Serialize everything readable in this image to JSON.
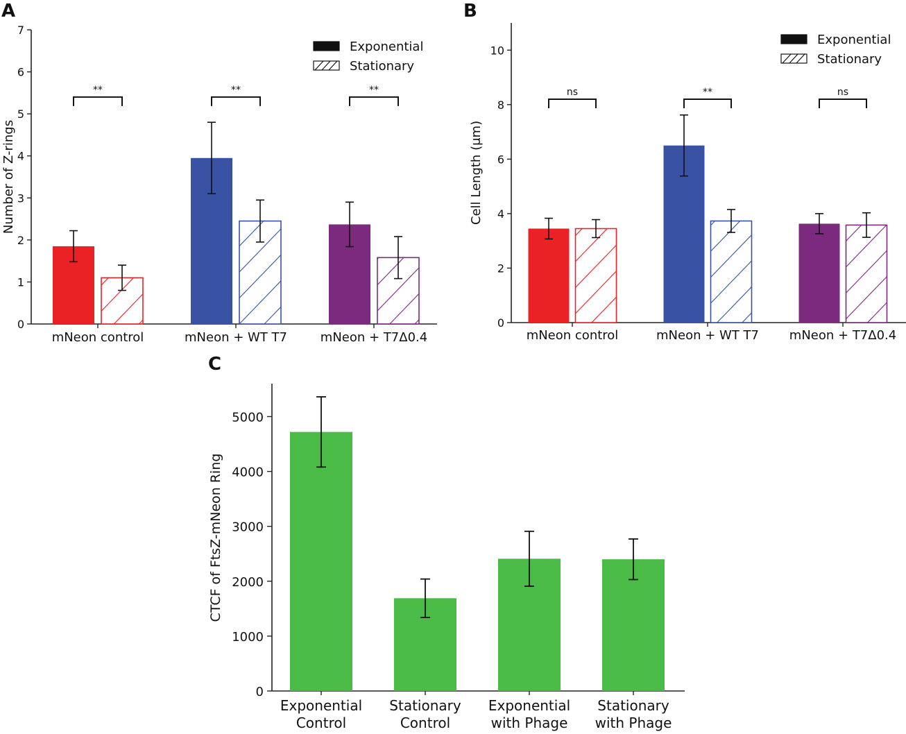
{
  "panels": {
    "a": "A",
    "b": "B",
    "c": "C"
  },
  "colors": {
    "mneon_control": "#ea2226",
    "wt_t7": "#3a52a4",
    "t7_delta": "#7b2a7e",
    "green": "#4bbb48",
    "axis": "#222222"
  },
  "chart_data": [
    {
      "id": "A",
      "type": "bar",
      "ylabel": "Number of Z-rings",
      "xlabel": "",
      "ylim": [
        0,
        7
      ],
      "yticks": [
        0,
        1,
        2,
        3,
        4,
        5,
        6,
        7
      ],
      "categories": [
        "mNeon control",
        "mNeon + WT T7",
        "mNeon + T7Δ0.4"
      ],
      "category_colors": [
        "#ea2226",
        "#3a52a4",
        "#7b2a7e"
      ],
      "series": [
        {
          "name": "Exponential",
          "style": "solid",
          "values": [
            1.85,
            3.95,
            2.37
          ],
          "errors": [
            0.37,
            0.85,
            0.53
          ]
        },
        {
          "name": "Stationary",
          "style": "hatched",
          "values": [
            1.1,
            2.45,
            1.58
          ],
          "errors": [
            0.3,
            0.5,
            0.5
          ]
        }
      ],
      "significance": [
        "**",
        "**",
        "**"
      ],
      "significance_y": 5.4,
      "legend": {
        "position": "top-right",
        "entries": [
          "Exponential",
          "Stationary"
        ]
      }
    },
    {
      "id": "B",
      "type": "bar",
      "ylabel": "Cell Length (μm)",
      "xlabel": "",
      "ylim": [
        0,
        11
      ],
      "yticks": [
        0,
        2,
        4,
        6,
        8,
        10
      ],
      "categories": [
        "mNeon control",
        "mNeon + WT T7",
        "mNeon + T7Δ0.4"
      ],
      "category_colors": [
        "#ea2226",
        "#3a52a4",
        "#7b2a7e"
      ],
      "series": [
        {
          "name": "Exponential",
          "style": "solid",
          "values": [
            3.45,
            6.5,
            3.63
          ],
          "errors": [
            0.38,
            1.12,
            0.37
          ]
        },
        {
          "name": "Stationary",
          "style": "hatched",
          "values": [
            3.45,
            3.73,
            3.58
          ],
          "errors": [
            0.33,
            0.42,
            0.45
          ]
        }
      ],
      "significance": [
        "ns",
        "**",
        "ns"
      ],
      "significance_y": 8.2,
      "legend": {
        "position": "top-right",
        "entries": [
          "Exponential",
          "Stationary"
        ]
      }
    },
    {
      "id": "C",
      "type": "bar",
      "ylabel": "CTCF of FtsZ-mNeon Ring",
      "xlabel": "",
      "ylim": [
        0,
        5600
      ],
      "yticks": [
        0,
        1000,
        2000,
        3000,
        4000,
        5000
      ],
      "categories": [
        [
          "Exponential",
          "Control"
        ],
        [
          "Stationary",
          "Control"
        ],
        [
          "Exponential",
          "with Phage"
        ],
        [
          "Stationary",
          "with Phage"
        ]
      ],
      "values": [
        4720,
        1690,
        2410,
        2400
      ],
      "errors": [
        640,
        350,
        500,
        370
      ],
      "color": "#4bbb48"
    }
  ]
}
